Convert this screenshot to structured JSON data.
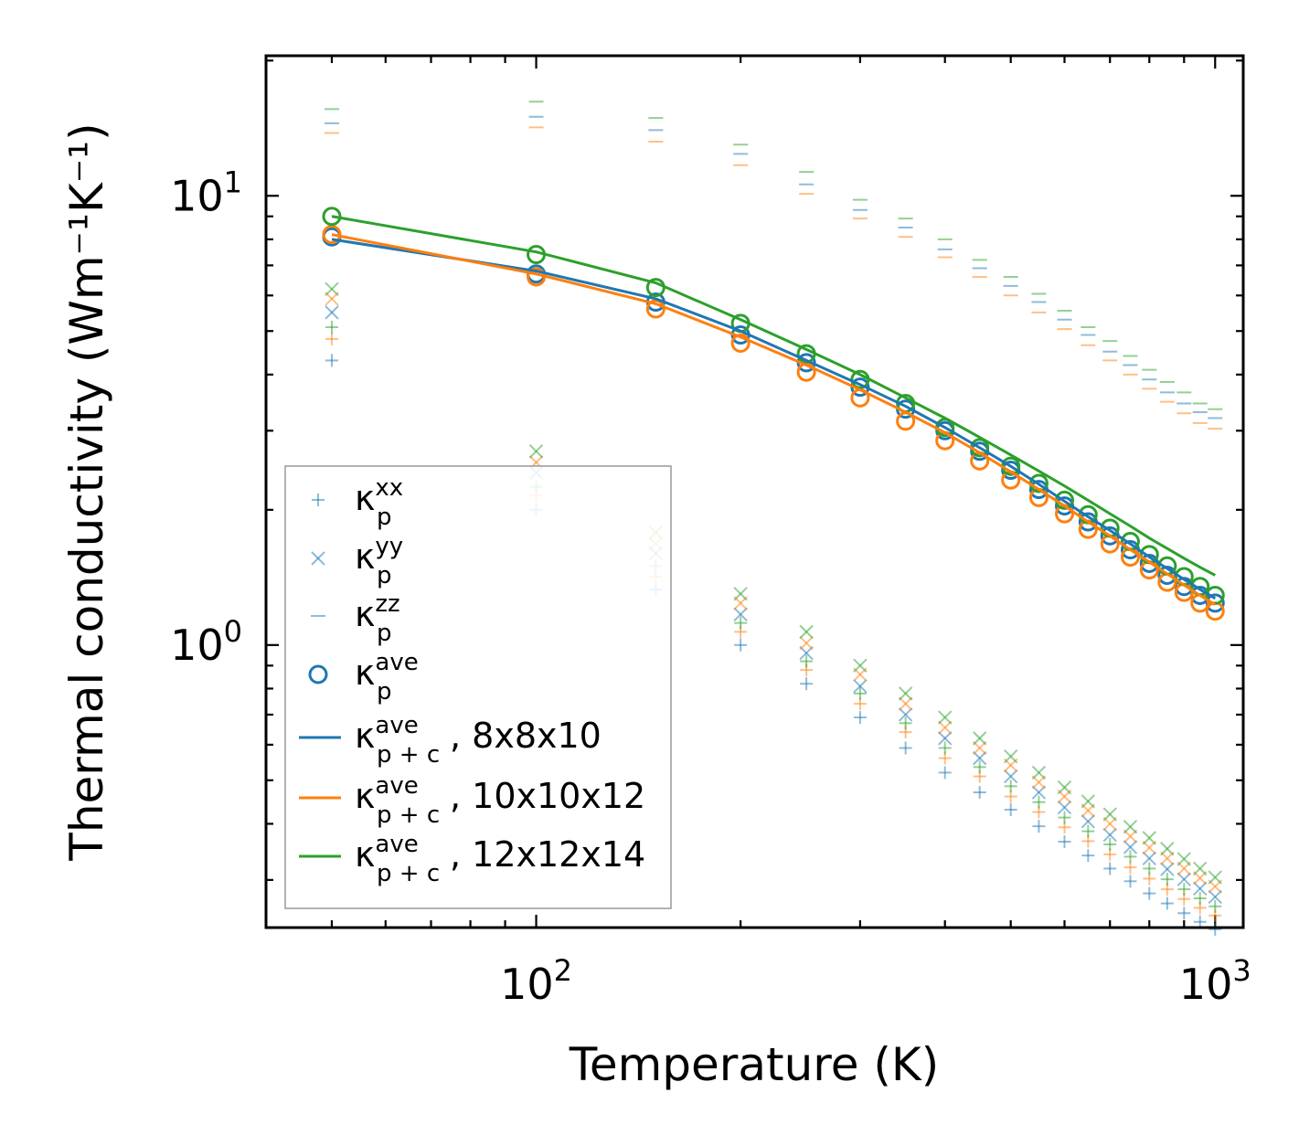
{
  "chart_data": {
    "type": "scatter",
    "xscale": "log",
    "yscale": "log",
    "xlabel": "Temperature (K)",
    "ylabel": "Thermal conductivity (Wm⁻¹K⁻¹)",
    "xlim": [
      40,
      1100
    ],
    "ylim": [
      0.235,
      20.5
    ],
    "x_ticks": [
      {
        "base": "10",
        "exp": "2",
        "value": 100
      },
      {
        "base": "10",
        "exp": "3",
        "value": 1000
      }
    ],
    "y_ticks": [
      {
        "base": "10",
        "exp": "0",
        "value": 1
      },
      {
        "base": "10",
        "exp": "1",
        "value": 10
      }
    ],
    "colors": {
      "blue": "#1f77b4",
      "orange": "#ff7f0e",
      "green": "#2ca02c"
    },
    "x": [
      50,
      100,
      150,
      200,
      250,
      300,
      350,
      400,
      450,
      500,
      550,
      600,
      650,
      700,
      750,
      800,
      850,
      900,
      950,
      1000
    ],
    "series": [
      {
        "name": "kp_ave 8x8x10",
        "kind": "circle",
        "color": "#1f77b4",
        "values": [
          8.1,
          6.7,
          5.8,
          4.9,
          4.25,
          3.75,
          3.35,
          3.0,
          2.7,
          2.45,
          2.22,
          2.04,
          1.88,
          1.75,
          1.63,
          1.52,
          1.43,
          1.35,
          1.29,
          1.24
        ]
      },
      {
        "name": "kp_ave 10x10x12",
        "kind": "circle",
        "color": "#ff7f0e",
        "values": [
          8.2,
          6.6,
          5.6,
          4.7,
          4.05,
          3.55,
          3.15,
          2.85,
          2.57,
          2.33,
          2.13,
          1.96,
          1.81,
          1.68,
          1.57,
          1.47,
          1.38,
          1.31,
          1.24,
          1.19
        ]
      },
      {
        "name": "kp_ave 12x12x14",
        "kind": "circle",
        "color": "#2ca02c",
        "values": [
          9.0,
          7.4,
          6.25,
          5.2,
          4.45,
          3.9,
          3.45,
          3.05,
          2.75,
          2.5,
          2.29,
          2.1,
          1.95,
          1.82,
          1.7,
          1.59,
          1.5,
          1.42,
          1.35,
          1.29
        ]
      },
      {
        "name": "kpc_ave 8x8x10",
        "kind": "line",
        "color": "#1f77b4",
        "values": [
          8.0,
          6.8,
          5.9,
          5.0,
          4.3,
          3.8,
          3.4,
          3.05,
          2.75,
          2.5,
          2.28,
          2.09,
          1.93,
          1.8,
          1.68,
          1.57,
          1.48,
          1.4,
          1.33,
          1.27
        ]
      },
      {
        "name": "kpc_ave 10x10x12",
        "kind": "line",
        "color": "#ff7f0e",
        "values": [
          8.2,
          6.7,
          5.75,
          4.85,
          4.2,
          3.7,
          3.3,
          2.97,
          2.68,
          2.43,
          2.22,
          2.04,
          1.88,
          1.75,
          1.63,
          1.53,
          1.44,
          1.36,
          1.29,
          1.23
        ]
      },
      {
        "name": "kpc_ave 12x12x14",
        "kind": "line",
        "color": "#2ca02c",
        "values": [
          9.0,
          7.5,
          6.4,
          5.3,
          4.55,
          4.0,
          3.55,
          3.2,
          2.9,
          2.65,
          2.44,
          2.26,
          2.1,
          1.96,
          1.84,
          1.73,
          1.64,
          1.56,
          1.49,
          1.43
        ]
      },
      {
        "name": "kxx 8x8x10",
        "kind": "plus",
        "color": "#1f77b4",
        "values": [
          4.3,
          2.0,
          1.33,
          1.0,
          0.82,
          0.69,
          0.59,
          0.52,
          0.47,
          0.43,
          0.395,
          0.365,
          0.34,
          0.318,
          0.298,
          0.28,
          0.266,
          0.253,
          0.242,
          0.233
        ]
      },
      {
        "name": "kxx 10x10x12",
        "kind": "plus",
        "color": "#ff7f0e",
        "values": [
          4.8,
          2.15,
          1.42,
          1.07,
          0.88,
          0.74,
          0.64,
          0.56,
          0.51,
          0.46,
          0.425,
          0.393,
          0.366,
          0.342,
          0.32,
          0.302,
          0.286,
          0.272,
          0.26,
          0.25
        ]
      },
      {
        "name": "kxx 12x12x14",
        "kind": "plus",
        "color": "#2ca02c",
        "values": [
          5.1,
          2.25,
          1.5,
          1.12,
          0.92,
          0.78,
          0.67,
          0.59,
          0.535,
          0.485,
          0.447,
          0.413,
          0.385,
          0.36,
          0.338,
          0.318,
          0.301,
          0.286,
          0.273,
          0.262
        ]
      },
      {
        "name": "kyy 8x8x10",
        "kind": "cross",
        "color": "#1f77b4",
        "values": [
          5.5,
          2.42,
          1.6,
          1.17,
          0.96,
          0.81,
          0.7,
          0.62,
          0.56,
          0.51,
          0.47,
          0.435,
          0.405,
          0.378,
          0.355,
          0.335,
          0.317,
          0.301,
          0.287,
          0.275
        ]
      },
      {
        "name": "kyy 10x10x12",
        "kind": "cross",
        "color": "#ff7f0e",
        "values": [
          5.9,
          2.55,
          1.68,
          1.24,
          1.01,
          0.86,
          0.74,
          0.655,
          0.59,
          0.54,
          0.495,
          0.46,
          0.428,
          0.4,
          0.375,
          0.354,
          0.335,
          0.318,
          0.303,
          0.29
        ]
      },
      {
        "name": "kyy 12x12x14",
        "kind": "cross",
        "color": "#2ca02c",
        "values": [
          6.2,
          2.7,
          1.78,
          1.3,
          1.07,
          0.9,
          0.78,
          0.69,
          0.62,
          0.565,
          0.52,
          0.482,
          0.449,
          0.42,
          0.394,
          0.372,
          0.352,
          0.334,
          0.318,
          0.304
        ]
      },
      {
        "name": "kzz 8x8x10",
        "kind": "dash",
        "color": "#1f77b4",
        "values": [
          14.5,
          15.0,
          14.0,
          12.4,
          10.6,
          9.3,
          8.5,
          7.6,
          6.9,
          6.3,
          5.8,
          5.3,
          4.9,
          4.5,
          4.2,
          3.9,
          3.65,
          3.45,
          3.3,
          3.2
        ]
      },
      {
        "name": "kzz 10x10x12",
        "kind": "dash",
        "color": "#ff7f0e",
        "values": [
          13.8,
          14.2,
          13.2,
          11.7,
          10.1,
          8.9,
          8.1,
          7.3,
          6.6,
          6.0,
          5.5,
          5.05,
          4.65,
          4.3,
          4.0,
          3.72,
          3.48,
          3.28,
          3.12,
          3.03
        ]
      },
      {
        "name": "kzz 12x12x14",
        "kind": "dash",
        "color": "#2ca02c",
        "values": [
          15.6,
          16.2,
          14.9,
          13.0,
          11.3,
          9.8,
          8.9,
          8.0,
          7.2,
          6.6,
          6.05,
          5.55,
          5.1,
          4.75,
          4.4,
          4.1,
          3.85,
          3.65,
          3.45,
          3.35
        ]
      }
    ],
    "legend": {
      "position": "lower-left",
      "entries": [
        {
          "kind": "plus",
          "color": "#1f77b4",
          "sym": "κ",
          "sub": "p",
          "sup": "xx",
          "suffix": ""
        },
        {
          "kind": "cross",
          "color": "#1f77b4",
          "sym": "κ",
          "sub": "p",
          "sup": "yy",
          "suffix": ""
        },
        {
          "kind": "dash",
          "color": "#1f77b4",
          "sym": "κ",
          "sub": "p",
          "sup": "zz",
          "suffix": ""
        },
        {
          "kind": "circle",
          "color": "#1f77b4",
          "sym": "κ",
          "sub": "p",
          "sup": "ave",
          "suffix": ""
        },
        {
          "kind": "line",
          "color": "#1f77b4",
          "sym": "κ",
          "sub": "p + c",
          "sup": "ave",
          "suffix": ", 8x8x10"
        },
        {
          "kind": "line",
          "color": "#ff7f0e",
          "sym": "κ",
          "sub": "p + c",
          "sup": "ave",
          "suffix": ", 10x10x12"
        },
        {
          "kind": "line",
          "color": "#2ca02c",
          "sym": "κ",
          "sub": "p + c",
          "sup": "ave",
          "suffix": ", 12x12x14"
        }
      ]
    }
  }
}
